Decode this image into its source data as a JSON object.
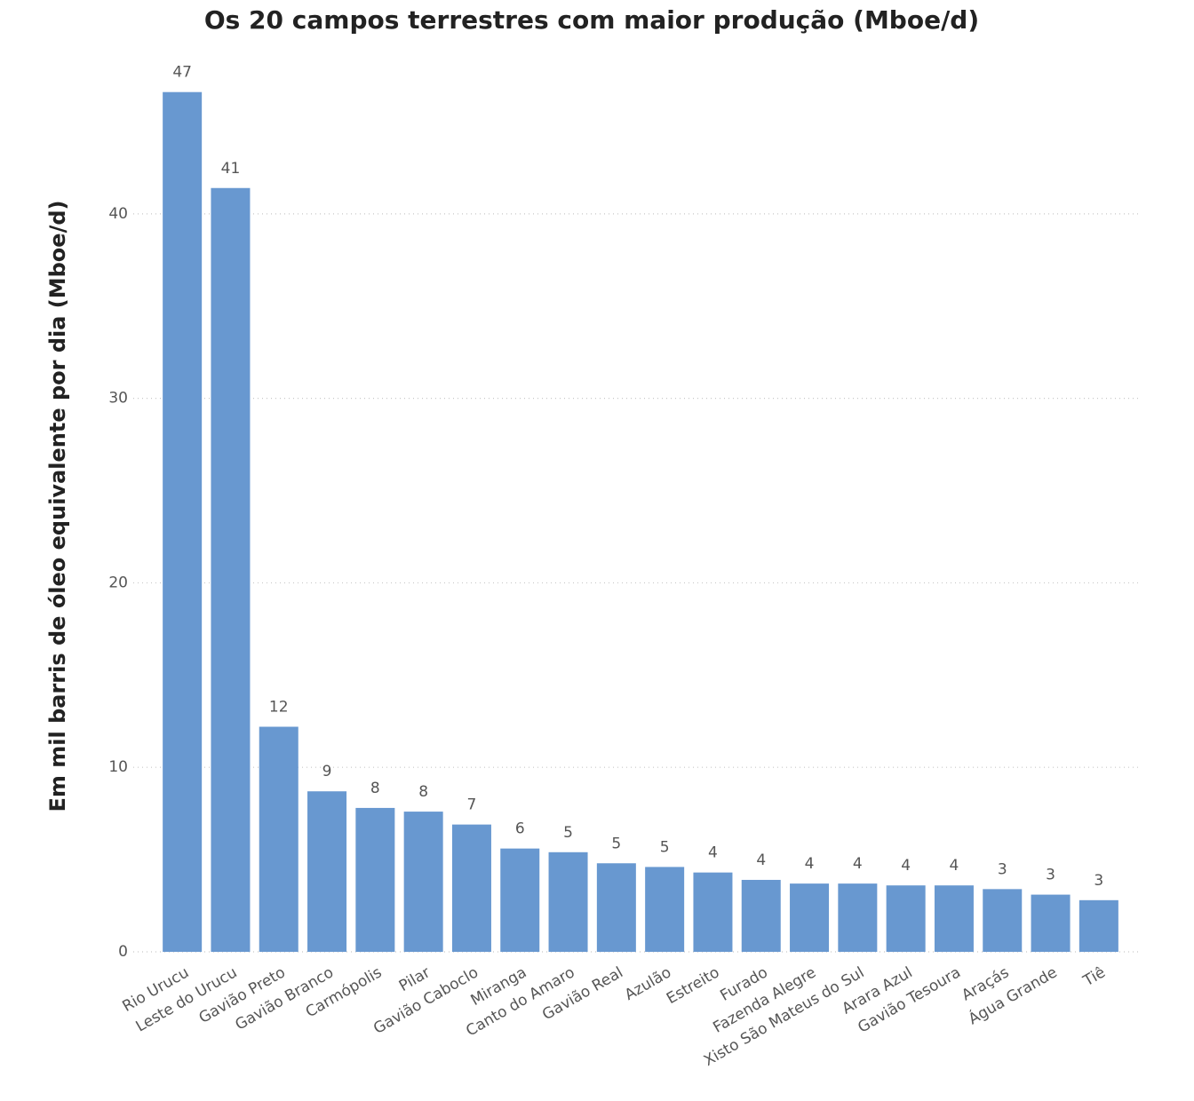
{
  "chart_data": {
    "type": "bar",
    "title": "Os 20 campos terrestres com maior produção (Mboe/d)",
    "y_label": "Em mil barris de óleo equivalente por dia (Mboe/d)",
    "categories": [
      "Rio Urucu",
      "Leste do Urucu",
      "Gavião Preto",
      "Gavião Branco",
      "Carmópolis",
      "Pilar",
      "Gavião Caboclo",
      "Miranga",
      "Canto do Amaro",
      "Gavião Real",
      "Azulão",
      "Estreito",
      "Furado",
      "Fazenda Alegre",
      "Xisto São Mateus do Sul",
      "Arara Azul",
      "Gavião Tesoura",
      "Araçás",
      "Água Grande",
      "Tiê"
    ],
    "values": [
      46.6,
      41.4,
      12.2,
      8.7,
      7.8,
      7.6,
      6.9,
      5.6,
      5.4,
      4.8,
      4.6,
      4.3,
      3.9,
      3.7,
      3.7,
      3.6,
      3.6,
      3.4,
      3.1,
      2.8
    ],
    "value_labels": [
      "47",
      "41",
      "12",
      "9",
      "8",
      "8",
      "7",
      "6",
      "5",
      "5",
      "5",
      "4",
      "4",
      "4",
      "4",
      "4",
      "4",
      "3",
      "3",
      "3"
    ],
    "color": "#6898d0",
    "ylim": [
      0,
      47.5
    ],
    "yticks": [
      0,
      10,
      20,
      30,
      40
    ],
    "grid": true
  }
}
